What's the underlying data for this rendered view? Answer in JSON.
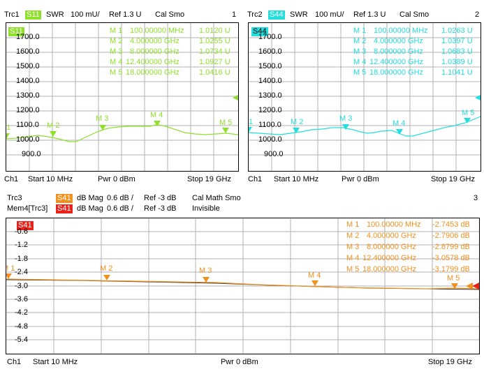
{
  "colors": {
    "trc1": "#8fe02a",
    "trc2": "#22dede",
    "trc3": "#f0901e",
    "mem4": "#e8231c"
  },
  "panel1": {
    "trc_label": "Trc1",
    "badge": "S11",
    "format": "SWR",
    "scale": "100 mU/",
    "ref": "Ref 1.3 U",
    "status": "Cal Smo",
    "number": "1",
    "inner_badge": "S11",
    "yticks": [
      "1700.0",
      "1600.0",
      "1500.0",
      "1400.0",
      "1300.0",
      "1200.0",
      "1100.0",
      "1000.0",
      "900.0"
    ],
    "markers": [
      {
        "name": "M 1",
        "freq": "100.00000 MHz",
        "val": "1.0120 U"
      },
      {
        "name": "M 2",
        "freq": "4.000000 GHz",
        "val": "1.0255 U"
      },
      {
        "name": "M 3",
        "freq": "8.000000 GHz",
        "val": "1.0734 U"
      },
      {
        "name": "M 4",
        "freq": "12.400000 GHz",
        "val": "1.0927 U"
      },
      {
        "name": "M 5",
        "freq": "18.000000 GHz",
        "val": "1.0416 U"
      }
    ],
    "chart_labels": [
      "1",
      "M 2",
      "M 3",
      "M 4",
      "M 5"
    ],
    "footer": {
      "ch": "Ch1",
      "start": "Start 10 MHz",
      "pwr": "Pwr 0 dBm",
      "stop": "Stop 19 GHz"
    }
  },
  "panel2": {
    "trc_label": "Trc2",
    "badge": "S44",
    "format": "SWR",
    "scale": "100 mU/",
    "ref": "Ref 1.3 U",
    "status": "Cal Smo",
    "number": "2",
    "inner_badge": "S44",
    "yticks": [
      "1700.0",
      "1600.0",
      "1500.0",
      "1400.0",
      "1300.0",
      "1200.0",
      "1100.0",
      "1000.0",
      "900.0"
    ],
    "markers": [
      {
        "name": "M 1",
        "freq": "100.00000 MHz",
        "val": "1.0263 U"
      },
      {
        "name": "M 2",
        "freq": "4.000000 GHz",
        "val": "1.0397 U"
      },
      {
        "name": "M 3",
        "freq": "8.000000 GHz",
        "val": "1.0683 U"
      },
      {
        "name": "M 4",
        "freq": "12.400000 GHz",
        "val": "1.0389 U"
      },
      {
        "name": "M 5",
        "freq": "18.000000 GHz",
        "val": "1.1041 U"
      }
    ],
    "chart_labels": [
      "1",
      "M 2",
      "M 3",
      "M 4",
      "M 5"
    ],
    "footer": {
      "ch": "Ch1",
      "start": "Start 10 MHz",
      "pwr": "Pwr 0 dBm",
      "stop": "Stop 19 GHz"
    }
  },
  "panel3": {
    "trc_label": "Trc3",
    "badge": "S41",
    "format": "dB Mag",
    "scale": "0.6 dB /",
    "ref": "Ref -3 dB",
    "status": "Cal Math Smo",
    "number": "3",
    "mem_label": "Mem4[Trc3]",
    "mem_badge": "S41",
    "mem_format": "dB Mag",
    "mem_scale": "0.6 dB /",
    "mem_ref": "Ref -3 dB",
    "mem_status": "Invisible",
    "inner_badge": "S41",
    "yticks": [
      "-0.6",
      "-1.2",
      "-1.8",
      "-2.4",
      "-3.0",
      "-3.6",
      "-4.2",
      "-4.8",
      "-5.4"
    ],
    "markers": [
      {
        "name": "M 1",
        "freq": "100.00000 MHz",
        "val": "-2.7453 dB"
      },
      {
        "name": "M 2",
        "freq": "4.000000 GHz",
        "val": "-2.7906 dB"
      },
      {
        "name": "M 3",
        "freq": "8.000000 GHz",
        "val": "-2.8799 dB"
      },
      {
        "name": "M 4",
        "freq": "12.400000 GHz",
        "val": "-3.0578 dB"
      },
      {
        "name": "M 5",
        "freq": "18.000000 GHz",
        "val": "-3.1799 dB"
      }
    ],
    "chart_labels": [
      "M 1",
      "M 2",
      "M 3",
      "M 4",
      "M 5"
    ],
    "footer": {
      "ch": "Ch1",
      "start": "Start 10 MHz",
      "pwr": "Pwr 0 dBm",
      "stop": "Stop 19 GHz"
    }
  }
}
